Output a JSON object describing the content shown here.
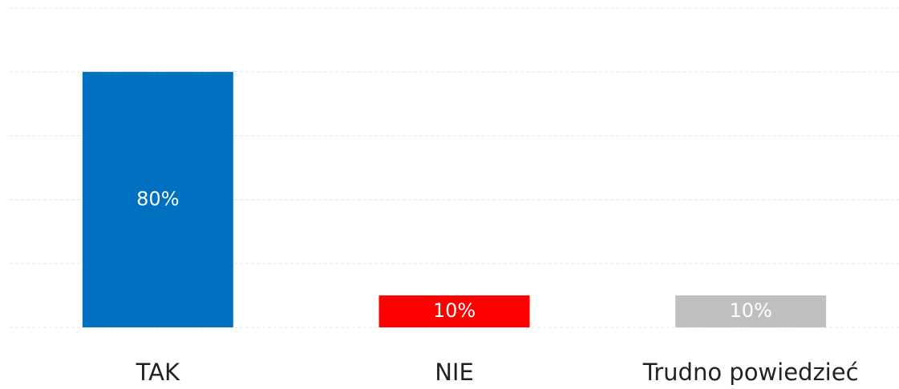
{
  "chart_data": {
    "type": "bar",
    "categories": [
      "TAK",
      "NIE",
      "Trudno powiedzieć"
    ],
    "values": [
      80,
      10,
      10
    ],
    "value_labels": [
      "80%",
      "10%",
      "10%"
    ],
    "colors": [
      "#0070c0",
      "#ff0000",
      "#bfbfbf"
    ],
    "ylim": [
      0,
      100
    ],
    "yticks": [
      0,
      20,
      40,
      60,
      80,
      100
    ],
    "grid": true
  }
}
